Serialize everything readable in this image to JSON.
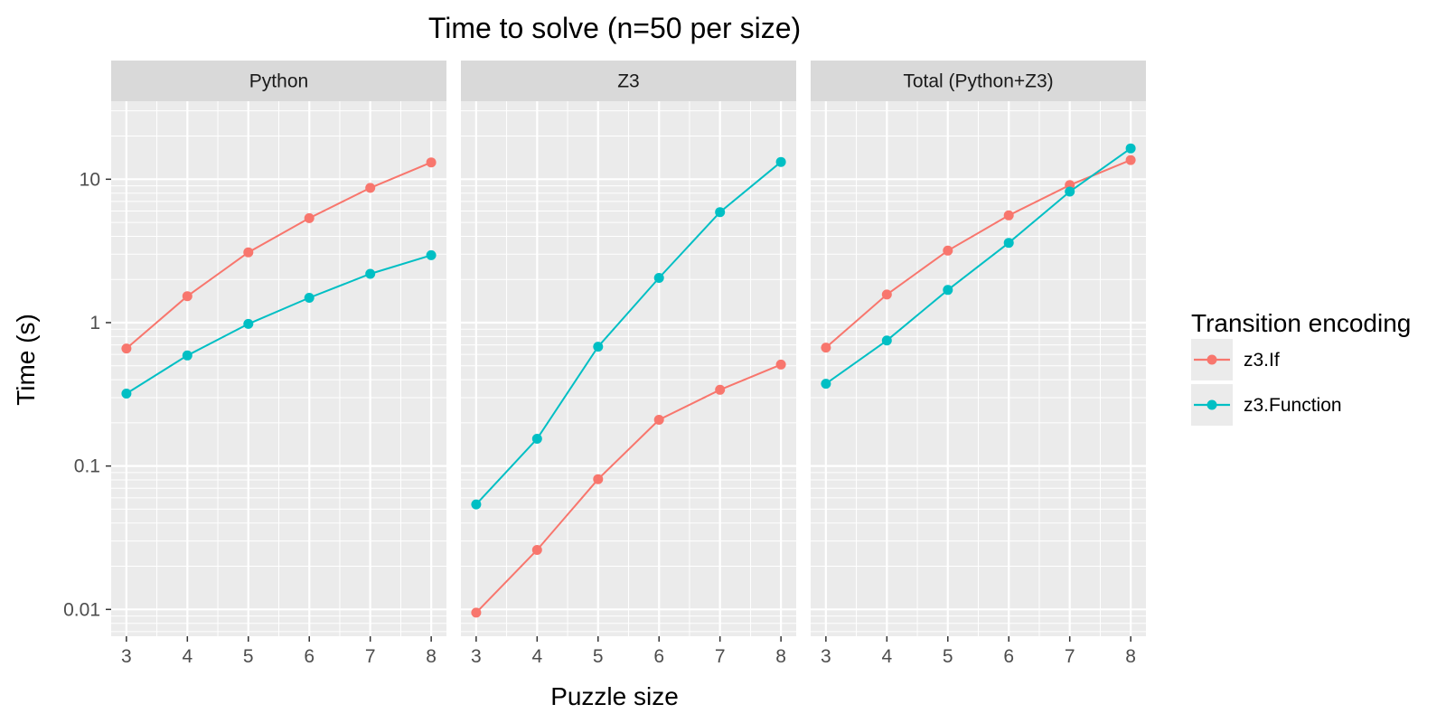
{
  "chart_data": {
    "type": "line",
    "title": "Time to solve (n=50 per size)",
    "xlabel": "Puzzle size",
    "ylabel": "Time (s)",
    "y_scale": "log10",
    "ylim": [
      0.0065,
      35
    ],
    "xlim": [
      2.75,
      8.25
    ],
    "grid": true,
    "x": [
      3,
      4,
      5,
      6,
      7,
      8
    ],
    "x_tick_labels": [
      "3",
      "4",
      "5",
      "6",
      "7",
      "8"
    ],
    "y_ticks": [
      0.01,
      0.1,
      1,
      10
    ],
    "y_tick_labels": [
      "0.01",
      "0.1",
      "1",
      "10"
    ],
    "legend": {
      "title": "Transition encoding",
      "placement": "right",
      "entries": [
        "z3.If",
        "z3.Function"
      ]
    },
    "series_colors": {
      "z3.If": "#F8766D",
      "z3.Function": "#00BFC4"
    },
    "panels": [
      {
        "strip": "Python",
        "series": [
          {
            "name": "z3.If",
            "values": [
              0.66,
              1.53,
              3.09,
              5.35,
              8.7,
              13.1
            ]
          },
          {
            "name": "z3.Function",
            "values": [
              0.32,
              0.59,
              0.98,
              1.49,
              2.19,
              2.95
            ]
          }
        ]
      },
      {
        "strip": "Z3",
        "series": [
          {
            "name": "z3.If",
            "values": [
              0.0095,
              0.026,
              0.081,
              0.21,
              0.34,
              0.51
            ]
          },
          {
            "name": "z3.Function",
            "values": [
              0.054,
              0.155,
              0.68,
              2.05,
              5.9,
              13.2
            ]
          }
        ]
      },
      {
        "strip": "Total (Python+Z3)",
        "series": [
          {
            "name": "z3.If",
            "values": [
              0.67,
              1.57,
              3.18,
              5.6,
              9.1,
              13.6
            ]
          },
          {
            "name": "z3.Function",
            "values": [
              0.375,
              0.75,
              1.69,
              3.6,
              8.2,
              16.4
            ]
          }
        ]
      }
    ]
  }
}
